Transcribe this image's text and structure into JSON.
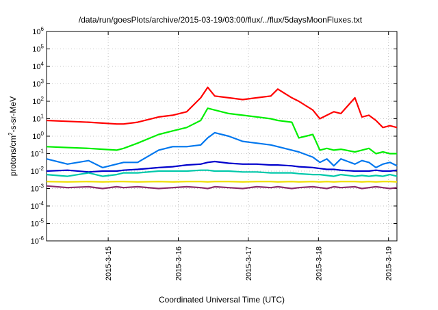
{
  "chart_data": {
    "type": "line",
    "title": "/data/run/goesPlots/archive/2015-03-19/03:00/flux/../flux/5daysMoonFluxes.txt",
    "xlabel": "Coordinated Universal Time (UTC)",
    "ylabel": "protons/cm²-s-sr-MeV",
    "y_scale": "log",
    "ylim_exp": [
      -6,
      6
    ],
    "y_ticks": [
      "10-6",
      "10-5",
      "10-4",
      "10-3",
      "10-2",
      "10-1",
      "100",
      "101",
      "102",
      "103",
      "104",
      "105",
      "106"
    ],
    "x_ticks": [
      "2015-3-15",
      "2015-3-16",
      "2015-3-17",
      "2015-3-18",
      "2015-3-19"
    ],
    "xlim": [
      "2015-03-14 03:00",
      "2015-03-19 03:00"
    ],
    "grid": true,
    "series_x": [
      0,
      0.3,
      0.6,
      0.8,
      1.0,
      1.1,
      1.3,
      1.6,
      1.8,
      2.0,
      2.2,
      2.3,
      2.4,
      2.6,
      2.8,
      3.0,
      3.2,
      3.3,
      3.5,
      3.6,
      3.8,
      3.9,
      4.0,
      4.1,
      4.2,
      4.4,
      4.5,
      4.6,
      4.7,
      4.8,
      4.9,
      5.0
    ],
    "series": [
      {
        "color": "#ff0000",
        "values_log10": [
          0.9,
          0.85,
          0.8,
          0.75,
          0.7,
          0.7,
          0.8,
          1.1,
          1.2,
          1.4,
          2.2,
          2.8,
          2.3,
          2.2,
          2.1,
          2.2,
          2.3,
          2.7,
          2.2,
          2.0,
          1.5,
          1.0,
          1.2,
          1.4,
          1.3,
          2.2,
          1.1,
          1.2,
          0.9,
          0.5,
          0.6,
          0.5
        ]
      },
      {
        "color": "#00ee00",
        "values_log10": [
          -0.6,
          -0.65,
          -0.7,
          -0.75,
          -0.8,
          -0.7,
          -0.4,
          0.1,
          0.3,
          0.5,
          0.9,
          1.6,
          1.5,
          1.3,
          1.2,
          1.1,
          1.0,
          0.9,
          0.8,
          -0.1,
          0.1,
          -0.8,
          -0.7,
          -0.8,
          -0.75,
          -0.9,
          -0.8,
          -0.7,
          -1.0,
          -0.9,
          -1.0,
          -1.0
        ]
      },
      {
        "color": "#0077ee",
        "values_log10": [
          -1.3,
          -1.6,
          -1.4,
          -1.8,
          -1.6,
          -1.5,
          -1.5,
          -0.8,
          -0.6,
          -0.6,
          -0.5,
          -0.1,
          0.2,
          0.0,
          -0.3,
          -0.4,
          -0.5,
          -0.6,
          -0.8,
          -0.9,
          -1.2,
          -1.5,
          -1.3,
          -1.7,
          -1.3,
          -1.6,
          -1.4,
          -1.5,
          -1.8,
          -1.6,
          -1.5,
          -1.7
        ]
      },
      {
        "color": "#0000cc",
        "values_log10": [
          -2.0,
          -1.95,
          -2.05,
          -2.0,
          -2.0,
          -1.95,
          -1.9,
          -1.8,
          -1.75,
          -1.65,
          -1.6,
          -1.5,
          -1.45,
          -1.55,
          -1.6,
          -1.6,
          -1.65,
          -1.65,
          -1.7,
          -1.75,
          -1.8,
          -1.85,
          -1.9,
          -1.9,
          -1.95,
          -2.0,
          -2.0,
          -2.0,
          -1.95,
          -2.0,
          -2.0,
          -1.95
        ]
      },
      {
        "color": "#00c8aa",
        "values_log10": [
          -2.2,
          -2.3,
          -2.1,
          -2.3,
          -2.2,
          -2.1,
          -2.1,
          -2.0,
          -2.0,
          -2.0,
          -1.95,
          -1.95,
          -2.0,
          -2.0,
          -2.05,
          -2.05,
          -2.1,
          -2.1,
          -2.1,
          -2.15,
          -2.2,
          -2.2,
          -2.25,
          -2.3,
          -2.2,
          -2.3,
          -2.25,
          -2.3,
          -2.25,
          -2.3,
          -2.2,
          -2.3
        ]
      },
      {
        "color": "#eedd00",
        "values_log10": [
          -2.6,
          -2.62,
          -2.6,
          -2.62,
          -2.6,
          -2.6,
          -2.62,
          -2.6,
          -2.62,
          -2.6,
          -2.6,
          -2.62,
          -2.6,
          -2.6,
          -2.62,
          -2.6,
          -2.6,
          -2.62,
          -2.6,
          -2.62,
          -2.6,
          -2.62,
          -2.6,
          -2.62,
          -2.6,
          -2.6,
          -2.62,
          -2.6,
          -2.62,
          -2.6,
          -2.6,
          -2.62
        ]
      },
      {
        "color": "#8b2a6b",
        "values_log10": [
          -2.85,
          -2.95,
          -2.9,
          -3.0,
          -2.9,
          -2.95,
          -2.9,
          -3.0,
          -2.95,
          -2.9,
          -2.95,
          -3.0,
          -2.9,
          -2.95,
          -3.0,
          -2.9,
          -2.95,
          -2.9,
          -3.0,
          -2.95,
          -2.9,
          -2.95,
          -3.0,
          -2.9,
          -2.95,
          -2.9,
          -3.0,
          -2.95,
          -2.9,
          -2.95,
          -3.0,
          -2.95
        ]
      }
    ]
  }
}
